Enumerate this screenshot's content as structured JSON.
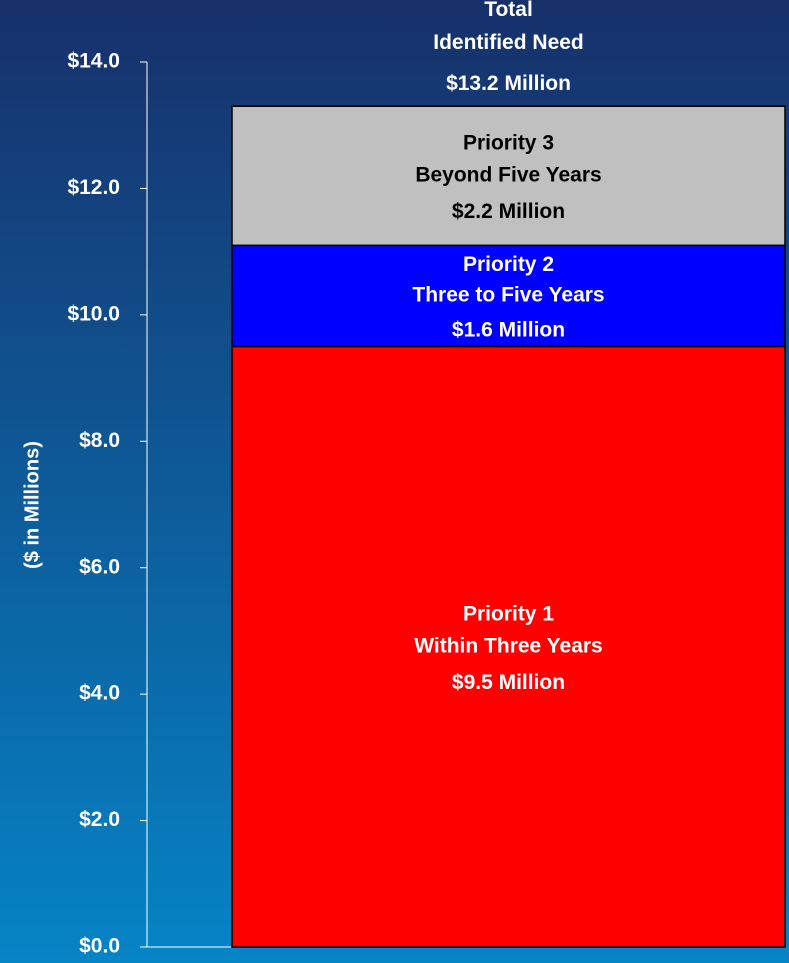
{
  "chart_data": {
    "type": "stacked_bar",
    "y_axis_label": "($ in Millions)",
    "ylim": [
      0,
      14
    ],
    "yticks": [
      {
        "value": 0,
        "label": "$0.0"
      },
      {
        "value": 2,
        "label": "$2.0"
      },
      {
        "value": 4,
        "label": "$4.0"
      },
      {
        "value": 6,
        "label": "$6.0"
      },
      {
        "value": 8,
        "label": "$8.0"
      },
      {
        "value": 10,
        "label": "$10.0"
      },
      {
        "value": 12,
        "label": "$12.0"
      },
      {
        "value": 14,
        "label": "$14.0"
      }
    ],
    "series": [
      {
        "name": "Priority 1",
        "description": "Within Three Years",
        "color": "#ff0000",
        "label_color": "#ffffff",
        "values": [
          9.5
        ],
        "value_labels": [
          "$9.5  Million"
        ]
      },
      {
        "name": "Priority 2",
        "description": "Three to Five Years",
        "color": "#0000ff",
        "label_color": "#ffffff",
        "values": [
          1.6
        ],
        "value_labels": [
          "$1.6  Million"
        ]
      },
      {
        "name": "Priority 3",
        "description": "Beyond Five Years",
        "color": "#c0c0c0",
        "label_color": "#000000",
        "values": [
          2.2
        ],
        "value_labels": [
          "$2.2  Million"
        ]
      }
    ],
    "total_title": [
      "Total",
      "Identified Need"
    ],
    "total_values": [
      13.2
    ],
    "total_value_labels": [
      "$13.2  Million"
    ]
  }
}
